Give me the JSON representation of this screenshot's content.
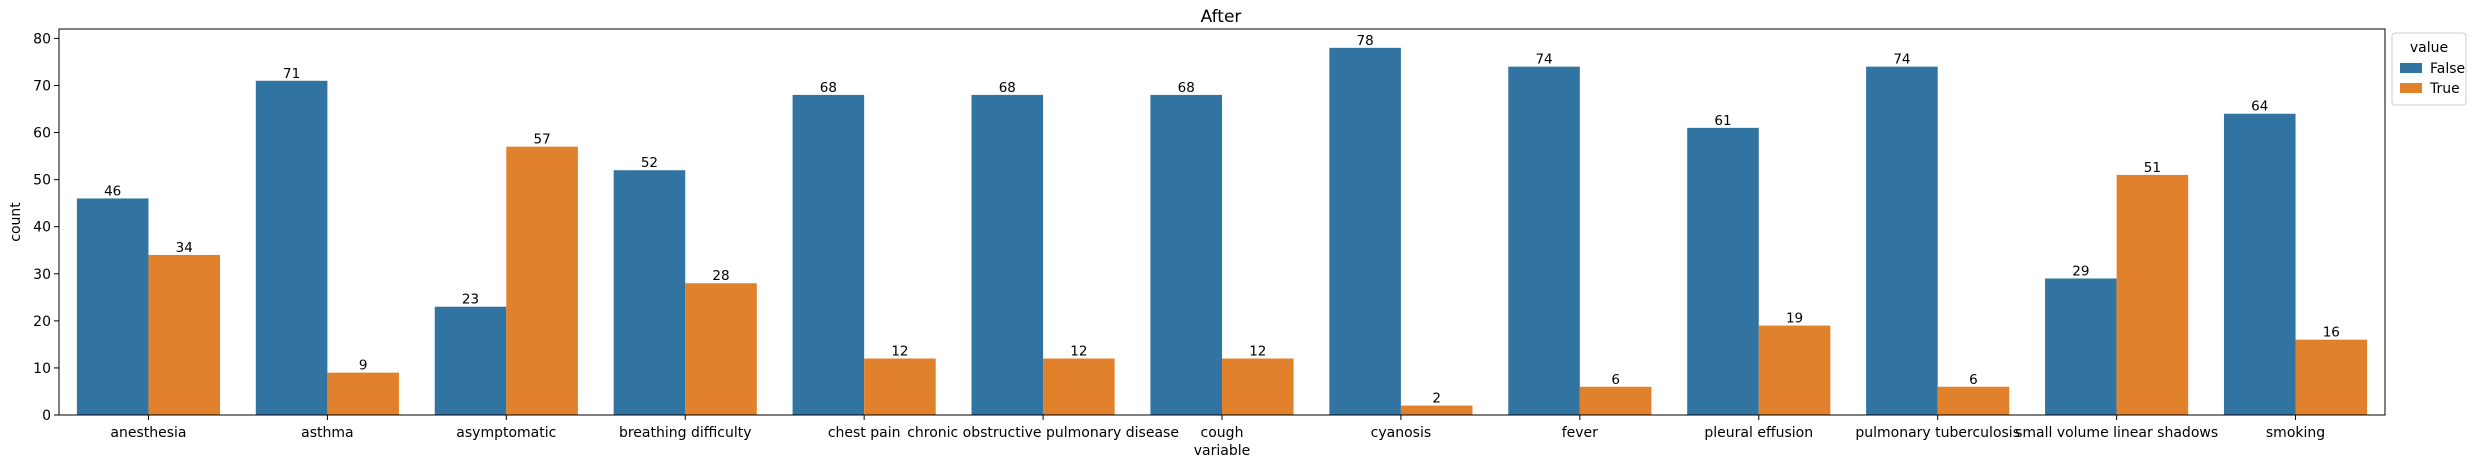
{
  "chart_data": {
    "type": "bar",
    "title": "After",
    "xlabel": "variable",
    "ylabel": "count",
    "ylim": [
      0,
      82
    ],
    "yticks": [
      0,
      10,
      20,
      30,
      40,
      50,
      60,
      70,
      80
    ],
    "grid": false,
    "legend": {
      "title": "value",
      "placement": "outside-top-right"
    },
    "categories": [
      "anesthesia",
      "asthma",
      "asymptomatic",
      "breathing difficulty",
      "chest pain",
      "chronic obstructive pulmonary disease",
      "cough",
      "cyanosis",
      "fever",
      "pleural effusion",
      "pulmonary tuberculosis",
      "small volume linear shadows",
      "smoking"
    ],
    "series": [
      {
        "name": "False",
        "color": "#3274a1",
        "values": [
          46,
          71,
          23,
          52,
          68,
          68,
          68,
          78,
          74,
          61,
          74,
          29,
          64
        ]
      },
      {
        "name": "True",
        "color": "#e1812c",
        "values": [
          34,
          9,
          57,
          28,
          12,
          12,
          12,
          2,
          6,
          19,
          6,
          51,
          16
        ]
      }
    ]
  }
}
